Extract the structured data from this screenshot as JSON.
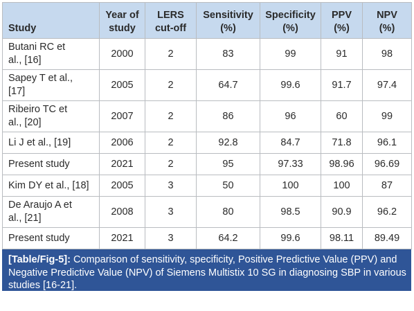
{
  "table": {
    "headers": {
      "study": "Study",
      "year": [
        "Year of",
        "study"
      ],
      "lers": [
        "LERS",
        "cut-off"
      ],
      "sensitivity": [
        "Sensitivity",
        "(%)"
      ],
      "specificity": [
        "Specificity",
        "(%)"
      ],
      "ppv": [
        "PPV",
        "(%)"
      ],
      "npv": [
        "NPV",
        "(%)"
      ]
    },
    "rows": [
      {
        "study": [
          "Butani RC et",
          "al., [16]"
        ],
        "year": "2000",
        "lers": "2",
        "sensitivity": "83",
        "specificity": "99",
        "ppv": "91",
        "npv": "98"
      },
      {
        "study": [
          "Sapey T et al.,",
          "[17]"
        ],
        "year": "2005",
        "lers": "2",
        "sensitivity": "64.7",
        "specificity": "99.6",
        "ppv": "91.7",
        "npv": "97.4"
      },
      {
        "study": [
          "Ribeiro TC et",
          "al., [20]"
        ],
        "year": "2007",
        "lers": "2",
        "sensitivity": "86",
        "specificity": "96",
        "ppv": "60",
        "npv": "99"
      },
      {
        "study": [
          "Li J et al., [19]"
        ],
        "year": "2006",
        "lers": "2",
        "sensitivity": "92.8",
        "specificity": "84.7",
        "ppv": "71.8",
        "npv": "96.1"
      },
      {
        "study": [
          "Present study"
        ],
        "year": "2021",
        "lers": "2",
        "sensitivity": "95",
        "specificity": "97.33",
        "ppv": "98.96",
        "npv": "96.69"
      },
      {
        "study": [
          "Kim DY et al., [18]"
        ],
        "year": "2005",
        "lers": "3",
        "sensitivity": "50",
        "specificity": "100",
        "ppv": "100",
        "npv": "87"
      },
      {
        "study": [
          "De Araujo A et",
          "al., [21]"
        ],
        "year": "2008",
        "lers": "3",
        "sensitivity": "80",
        "specificity": "98.5",
        "ppv": "90.9",
        "npv": "96.2"
      },
      {
        "study": [
          "Present study"
        ],
        "year": "2021",
        "lers": "3",
        "sensitivity": "64.2",
        "specificity": "99.6",
        "ppv": "98.11",
        "npv": "89.49"
      }
    ]
  },
  "caption": {
    "tag": "[Table/Fig-5]:",
    "text": " Comparison of sensitivity, specificity, Positive Predictive Value (PPV) and Negative Predictive Value (NPV) of Siemens Multistix 10 SG in diagnosing SBP in various studies [16-21]."
  },
  "colors": {
    "header_bg": "#c6d9ee",
    "caption_bg": "#2f5597",
    "border": "#b9bcc0"
  }
}
